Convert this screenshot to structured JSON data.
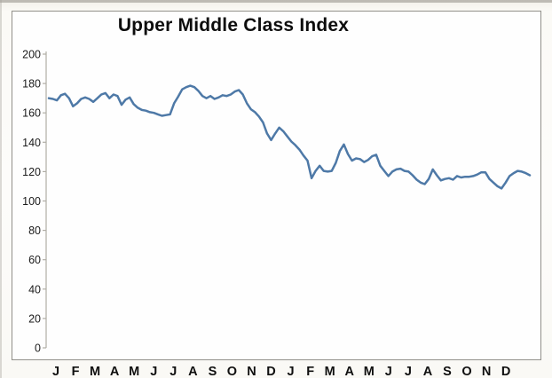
{
  "chart_data": {
    "type": "line",
    "title": "Upper Middle Class Index",
    "xlabel": "",
    "ylabel": "",
    "ylim": [
      0,
      200
    ],
    "y_tick_step": 20,
    "y_tick_labels": [
      "0",
      "20",
      "40",
      "60",
      "80",
      "100",
      "120",
      "140",
      "160",
      "180",
      "200"
    ],
    "x_tick_labels": [
      "J",
      "F",
      "M",
      "A",
      "M",
      "J",
      "J",
      "A",
      "S",
      "O",
      "N",
      "D",
      "J",
      "F",
      "M",
      "A",
      "M",
      "J",
      "J",
      "A",
      "S",
      "O",
      "N",
      "D"
    ],
    "grid": false,
    "legend": "none",
    "series": [
      {
        "name": "Upper Middle Class Index",
        "values": [
          170,
          169.5,
          168.5,
          172,
          173,
          170,
          164.5,
          166.5,
          169.5,
          170.5,
          169.5,
          167.5,
          170,
          172.5,
          173.5,
          170,
          172.5,
          171.5,
          165.5,
          169,
          170.5,
          166,
          163.5,
          162,
          161.5,
          160.5,
          160,
          159,
          158,
          158.5,
          159,
          166.5,
          171,
          176,
          177.5,
          178.5,
          177.5,
          175,
          171.5,
          170,
          171.5,
          169.5,
          170.5,
          172,
          171.5,
          172.5,
          174.5,
          175.5,
          172.5,
          166.5,
          162.5,
          160.5,
          157.5,
          153.5,
          146,
          141.5,
          146,
          150,
          147.5,
          144,
          140.5,
          138,
          135,
          131,
          127.5,
          115.5,
          120.5,
          124,
          120.5,
          120,
          120.5,
          126,
          134,
          138.5,
          132,
          127.5,
          129,
          128.5,
          126.5,
          128,
          130.5,
          131.5,
          124,
          120.5,
          117,
          120,
          121.5,
          122,
          120.5,
          120,
          117.5,
          114.5,
          112.5,
          111.5,
          115,
          121.5,
          117.5,
          114,
          115,
          115.5,
          114.5,
          117,
          116,
          116.5,
          116.5,
          117,
          118,
          119.5,
          119.5,
          115,
          112.5,
          110,
          108.5,
          112.5,
          117,
          119,
          120.5,
          120,
          119,
          117.5
        ]
      }
    ],
    "colors": {
      "line": "#4e79a7",
      "axis": "#b0ada5",
      "y_tick_label": "#1b1b1b",
      "x_tick_label": "#0f0f0f",
      "title": "#0d0d0d",
      "frame_border": "#92908a"
    }
  }
}
